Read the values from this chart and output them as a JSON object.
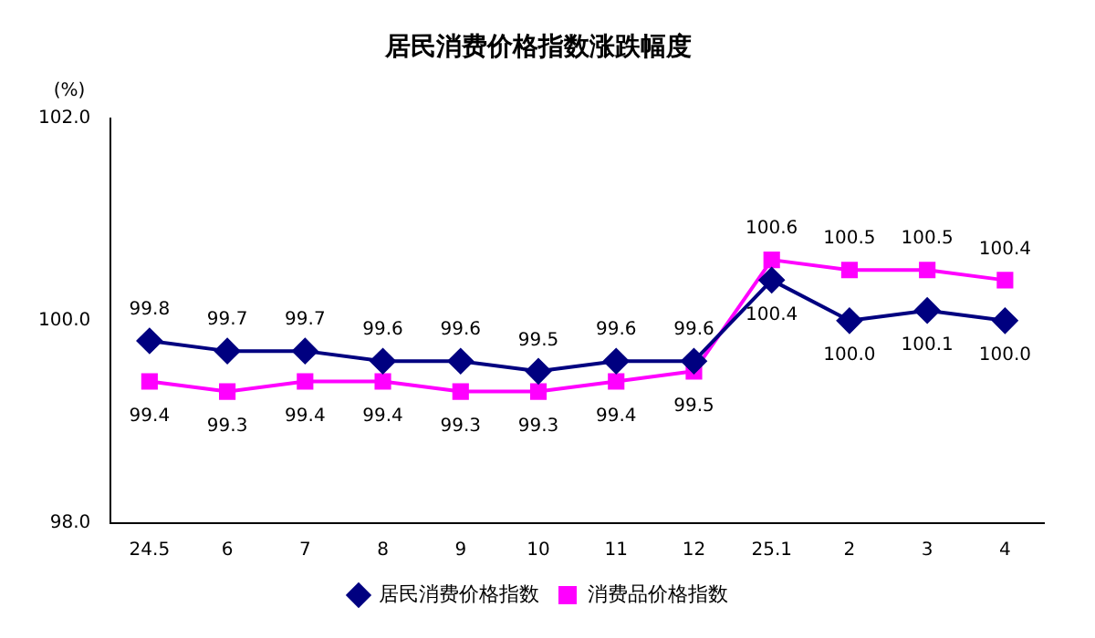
{
  "chart_data": {
    "type": "line",
    "title": "居民消费价格指数涨跌幅度",
    "ylabel": "(%)",
    "categories": [
      "24.5",
      "6",
      "7",
      "8",
      "9",
      "10",
      "11",
      "12",
      "25.1",
      "2",
      "3",
      "4"
    ],
    "series": [
      {
        "name": "居民消费价格指数",
        "color": "#000080",
        "marker": "diamond",
        "values": [
          99.8,
          99.7,
          99.7,
          99.6,
          99.6,
          99.5,
          99.6,
          99.6,
          100.4,
          100.0,
          100.1,
          100.0
        ],
        "value_labels": [
          "99.8",
          "99.7",
          "99.7",
          "99.6",
          "99.6",
          "99.5",
          "99.6",
          "99.6",
          "100.4",
          "100.0",
          "100.1",
          "100.0"
        ]
      },
      {
        "name": "消费品价格指数",
        "color": "#ff00ff",
        "marker": "square",
        "values": [
          99.4,
          99.3,
          99.4,
          99.4,
          99.3,
          99.3,
          99.4,
          99.5,
          100.6,
          100.5,
          100.5,
          100.4
        ],
        "value_labels": [
          "99.4",
          "99.3",
          "99.4",
          "99.4",
          "99.3",
          "99.3",
          "99.4",
          "99.5",
          "100.6",
          "100.5",
          "100.5",
          "100.4"
        ]
      }
    ],
    "ylim": [
      98,
      102
    ],
    "yticks": [
      {
        "value": 98,
        "label": "98.0"
      },
      {
        "value": 100,
        "label": "100.0"
      },
      {
        "value": 102,
        "label": "102.0"
      }
    ],
    "grid": false,
    "legend": "bottom"
  }
}
